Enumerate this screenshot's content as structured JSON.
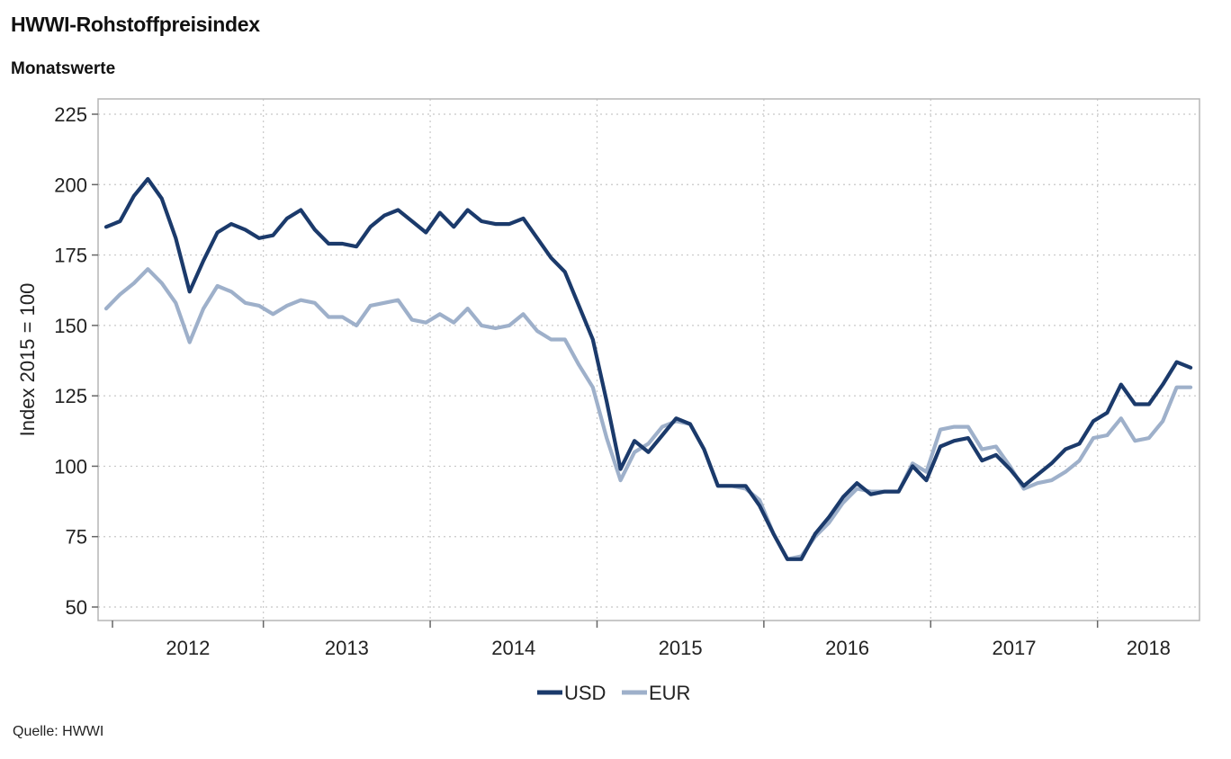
{
  "header": {
    "title": "HWWI-Rohstoffpreisindex",
    "subtitle": "Monatswerte"
  },
  "footer": {
    "source": "Quelle: HWWI"
  },
  "chart_data": {
    "type": "line",
    "ylabel": "Index 2015 = 100",
    "ylim": [
      50,
      225
    ],
    "yticks": [
      50,
      75,
      100,
      125,
      150,
      175,
      200,
      225
    ],
    "x_start": "2012-01",
    "x_end": "2018-08",
    "x_year_labels": [
      "2012",
      "2013",
      "2014",
      "2015",
      "2016",
      "2017",
      "2018"
    ],
    "grid": true,
    "legend_position": "bottom",
    "series": [
      {
        "name": "USD",
        "color": "#1b3a6b",
        "values": [
          185,
          187,
          196,
          202,
          195,
          181,
          162,
          173,
          183,
          186,
          184,
          181,
          182,
          188,
          191,
          184,
          179,
          179,
          178,
          185,
          189,
          191,
          187,
          183,
          190,
          185,
          191,
          187,
          186,
          186,
          188,
          181,
          174,
          169,
          157,
          145,
          123,
          99,
          109,
          105,
          111,
          117,
          115,
          106,
          93,
          93,
          93,
          86,
          76,
          67,
          67,
          76,
          82,
          89,
          94,
          90,
          91,
          91,
          100,
          95,
          107,
          109,
          110,
          102,
          104,
          99,
          93,
          97,
          101,
          106,
          108,
          116,
          119,
          129,
          122,
          122,
          129,
          137,
          135
        ],
        "x_start": "2012-01"
      },
      {
        "name": "EUR",
        "color": "#9eb0ca",
        "values": [
          156,
          161,
          165,
          170,
          165,
          158,
          144,
          156,
          164,
          162,
          158,
          157,
          154,
          157,
          159,
          158,
          153,
          153,
          150,
          157,
          158,
          159,
          152,
          151,
          154,
          151,
          156,
          150,
          149,
          150,
          154,
          148,
          145,
          145,
          136,
          128,
          110,
          95,
          105,
          108,
          114,
          116,
          115,
          106,
          93,
          93,
          92,
          88,
          76,
          67,
          68,
          75,
          80,
          87,
          92,
          91,
          91,
          91,
          101,
          98,
          113,
          114,
          114,
          106,
          107,
          100,
          92,
          94,
          95,
          98,
          102,
          110,
          111,
          117,
          109,
          110,
          116,
          128,
          128
        ],
        "x_start": "2012-01"
      }
    ]
  }
}
